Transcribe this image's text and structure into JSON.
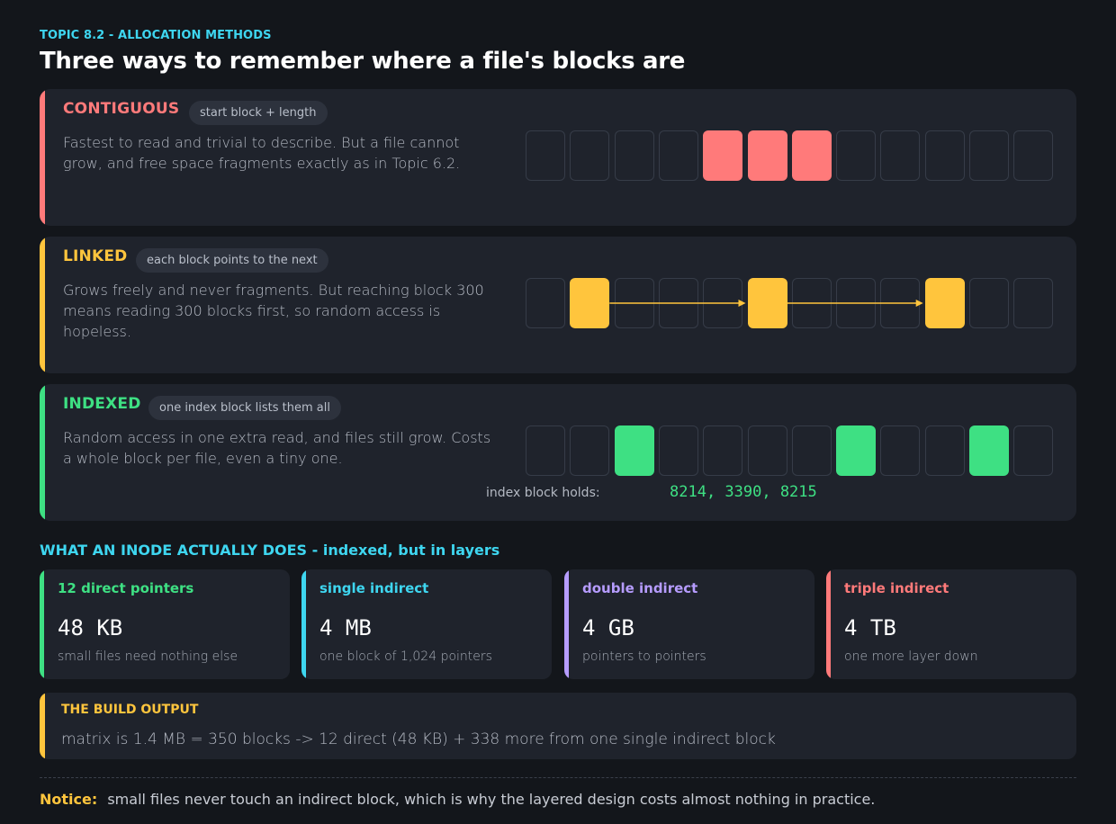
{
  "header": {
    "topic": "TOPIC 8.2  -  ALLOCATION METHODS",
    "title": "Three ways to remember where a file's blocks are"
  },
  "colors": {
    "contiguous": "#ff7a7a",
    "linked": "#ffc53d",
    "indexed": "#3ee083",
    "single": "#3ed6f0",
    "double": "#b69cff",
    "triple": "#ff7a7a"
  },
  "methods": [
    {
      "title": "CONTIGUOUS",
      "pill": "start block + length",
      "desc": "Fastest to read and trivial to describe. But a file cannot grow, and free space fragments exactly as in Topic 6.2.",
      "block_count": 12,
      "filled": [
        4,
        5,
        6
      ],
      "links": []
    },
    {
      "title": "LINKED",
      "pill": "each block points to the next",
      "desc": "Grows freely and never fragments. But reaching block 300 means reading 300 blocks first, so random access is hopeless.",
      "block_count": 12,
      "filled": [
        1,
        5,
        9
      ],
      "links": [
        [
          1,
          5
        ],
        [
          5,
          9
        ]
      ]
    },
    {
      "title": "INDEXED",
      "pill": "one index block lists them all",
      "desc": "Random access in one extra read, and files still grow. Costs a whole block per file, even a tiny one.",
      "block_count": 12,
      "filled": [
        2,
        7,
        10
      ],
      "links": [],
      "index_label": "index block holds:",
      "index_value": "8214, 3390, 8215"
    }
  ],
  "inode": {
    "heading": "WHAT AN INODE ACTUALLY DOES  -  indexed, but in layers",
    "tiles": [
      {
        "name": "12 direct pointers",
        "value": "48 KB",
        "sub": "small files need nothing else"
      },
      {
        "name": "single indirect",
        "value": "4 MB",
        "sub": "one block of 1,024 pointers"
      },
      {
        "name": "double indirect",
        "value": "4 GB",
        "sub": "pointers to pointers"
      },
      {
        "name": "triple indirect",
        "value": "4 TB",
        "sub": "one more layer down"
      }
    ]
  },
  "build": {
    "title": "THE BUILD OUTPUT",
    "text": "matrix is 1.4 MB = 350 blocks  ->  12 direct (48 KB) + 338 more from one single indirect block"
  },
  "notice": {
    "label": "Notice:",
    "text": "small files never touch an indirect block, which is why the layered design costs almost nothing in practice."
  }
}
